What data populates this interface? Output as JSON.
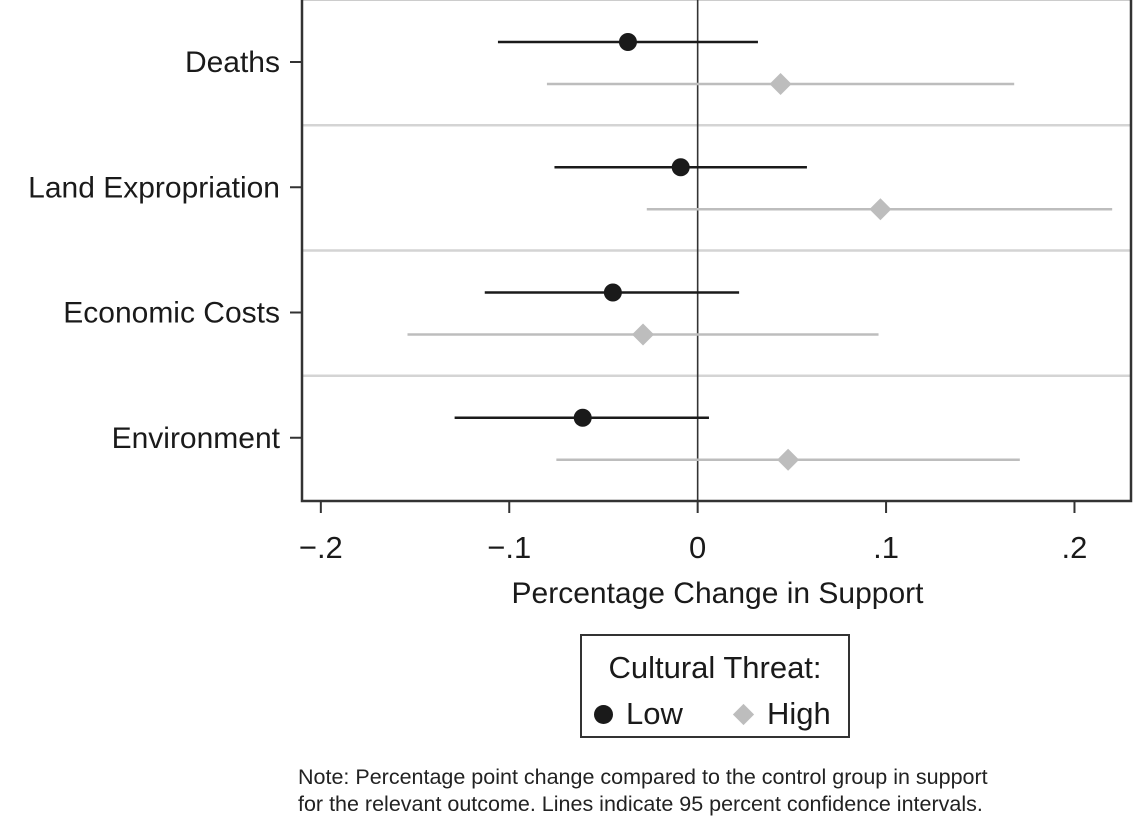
{
  "chart_data": {
    "type": "scatter",
    "subtype": "coefficient-plot-with-confidence-intervals",
    "categories": [
      "Deaths",
      "Land Expropriation",
      "Economic Costs",
      "Environment"
    ],
    "xlabel": "Percentage Change in Support",
    "xlim": [
      -0.21,
      0.23
    ],
    "xticks": [
      -0.2,
      -0.1,
      0,
      0.1,
      0.2
    ],
    "xtick_labels": [
      "−.2",
      "−.1",
      "0",
      ".1",
      ".2"
    ],
    "reference_line_x": 0,
    "legend_title": "Cultural Threat:",
    "legend_position": "bottom-center",
    "series": [
      {
        "name": "Low",
        "marker": "circle",
        "color": "#1a1a1a",
        "estimates": [
          -0.037,
          -0.009,
          -0.045,
          -0.061
        ],
        "ci_low": [
          -0.106,
          -0.076,
          -0.113,
          -0.129
        ],
        "ci_high": [
          0.032,
          0.058,
          0.022,
          0.006
        ]
      },
      {
        "name": "High",
        "marker": "diamond",
        "color": "#bdbdbd",
        "estimates": [
          0.044,
          0.097,
          -0.029,
          0.048
        ],
        "ci_low": [
          -0.08,
          -0.027,
          -0.154,
          -0.075
        ],
        "ci_high": [
          0.168,
          0.22,
          0.096,
          0.171
        ]
      }
    ]
  },
  "note": {
    "line1": "Note: Percentage point change compared to the control group in support",
    "line2": "for the relevant outcome. Lines indicate 95 percent confidence intervals."
  }
}
